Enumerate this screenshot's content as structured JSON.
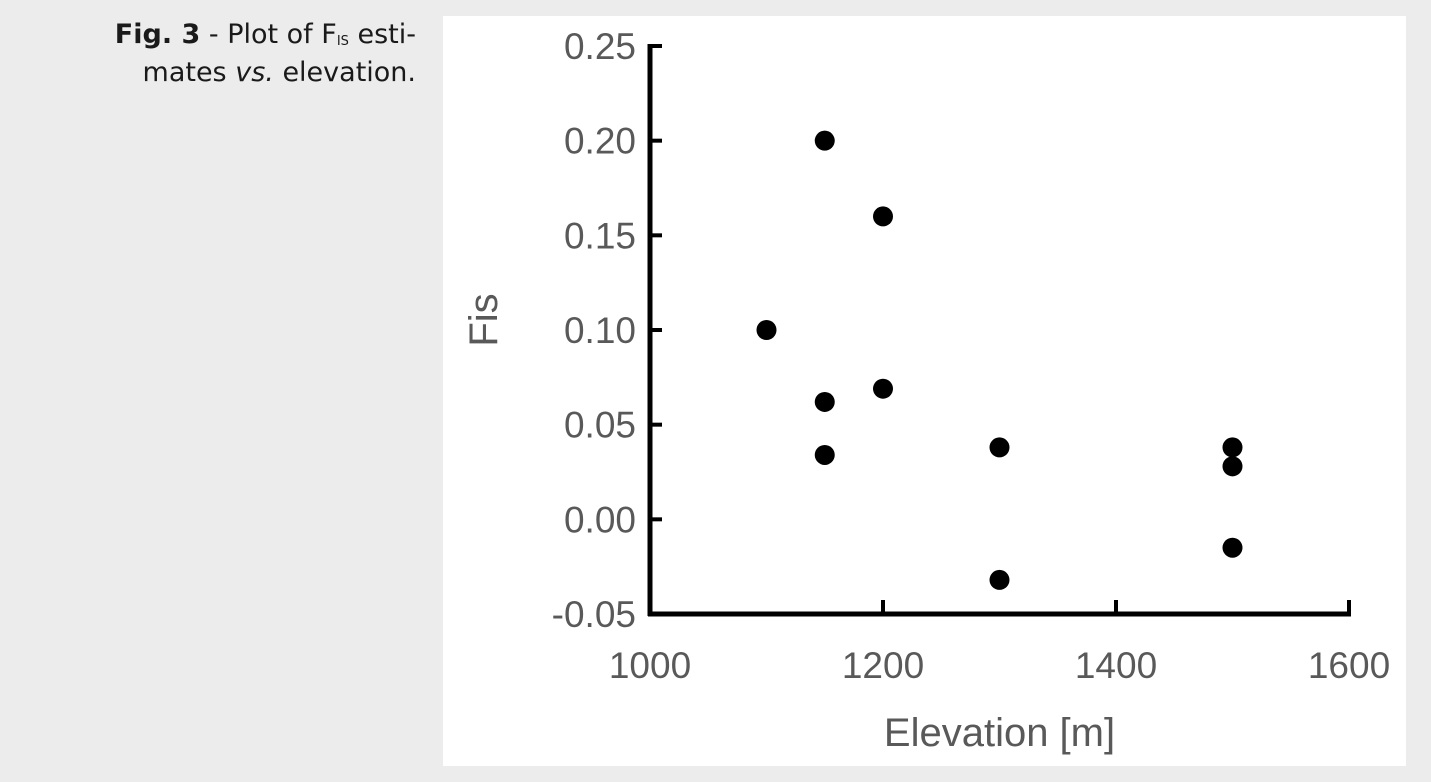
{
  "caption": {
    "fig_label": "Fig. 3",
    "text_before": " - Plot of F",
    "subscript": "IS",
    "text_after_line1": " esti-",
    "line2_before": "mates ",
    "line2_italic": "vs.",
    "line2_after": " elevation."
  },
  "chart_data": {
    "type": "scatter",
    "xlabel": "Elevation [m]",
    "ylabel": "Fis",
    "xlim": [
      1000,
      1600
    ],
    "ylim": [
      -0.05,
      0.25
    ],
    "x_ticks": [
      1000,
      1200,
      1400,
      1600
    ],
    "x_tick_labels": [
      "1000",
      "1200",
      "1400",
      "1600"
    ],
    "y_ticks": [
      -0.05,
      0.0,
      0.05,
      0.1,
      0.15,
      0.2,
      0.25
    ],
    "y_tick_labels": [
      "-0.05",
      "0.00",
      "0.05",
      "0.10",
      "0.15",
      "0.20",
      "0.25"
    ],
    "grid": false,
    "marker_color": "#000000",
    "axis_color": "#000000",
    "label_color": "#595959",
    "points": [
      {
        "x": 1100,
        "y": 0.1
      },
      {
        "x": 1150,
        "y": 0.2
      },
      {
        "x": 1150,
        "y": 0.062
      },
      {
        "x": 1150,
        "y": 0.034
      },
      {
        "x": 1200,
        "y": 0.16
      },
      {
        "x": 1200,
        "y": 0.069
      },
      {
        "x": 1300,
        "y": 0.038
      },
      {
        "x": 1300,
        "y": -0.032
      },
      {
        "x": 1500,
        "y": 0.038
      },
      {
        "x": 1500,
        "y": 0.028
      },
      {
        "x": 1500,
        "y": -0.015
      }
    ]
  }
}
